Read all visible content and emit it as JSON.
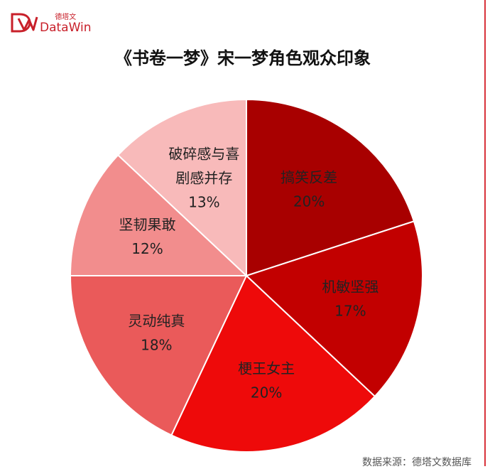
{
  "brand": {
    "logo_cn": "德塔文",
    "logo_en": "DataWin"
  },
  "chart_data": {
    "type": "pie",
    "title": "《书卷一梦》宋一梦角色观众印象",
    "slices": [
      {
        "label": "搞笑反差",
        "value": 20,
        "display": "20%",
        "color": "#a80000"
      },
      {
        "label": "机敏坚强",
        "value": 17,
        "display": "17%",
        "color": "#c20000"
      },
      {
        "label": "梗王女主",
        "value": 20,
        "display": "20%",
        "color": "#ee0a0a"
      },
      {
        "label": "灵动纯真",
        "value": 18,
        "display": "18%",
        "color": "#ea5a5a"
      },
      {
        "label": "坚韧果敢",
        "value": 12,
        "display": "12%",
        "color": "#f28d8d"
      },
      {
        "label": "破碎感与喜剧感并存",
        "value": 13,
        "display": "13%",
        "color": "#f8baba",
        "lines": [
          "破碎感与喜",
          "剧感并存"
        ]
      }
    ],
    "start": "12 o'clock",
    "direction": "clockwise",
    "legend": "none"
  },
  "source": "数据来源：德塔文数据库"
}
